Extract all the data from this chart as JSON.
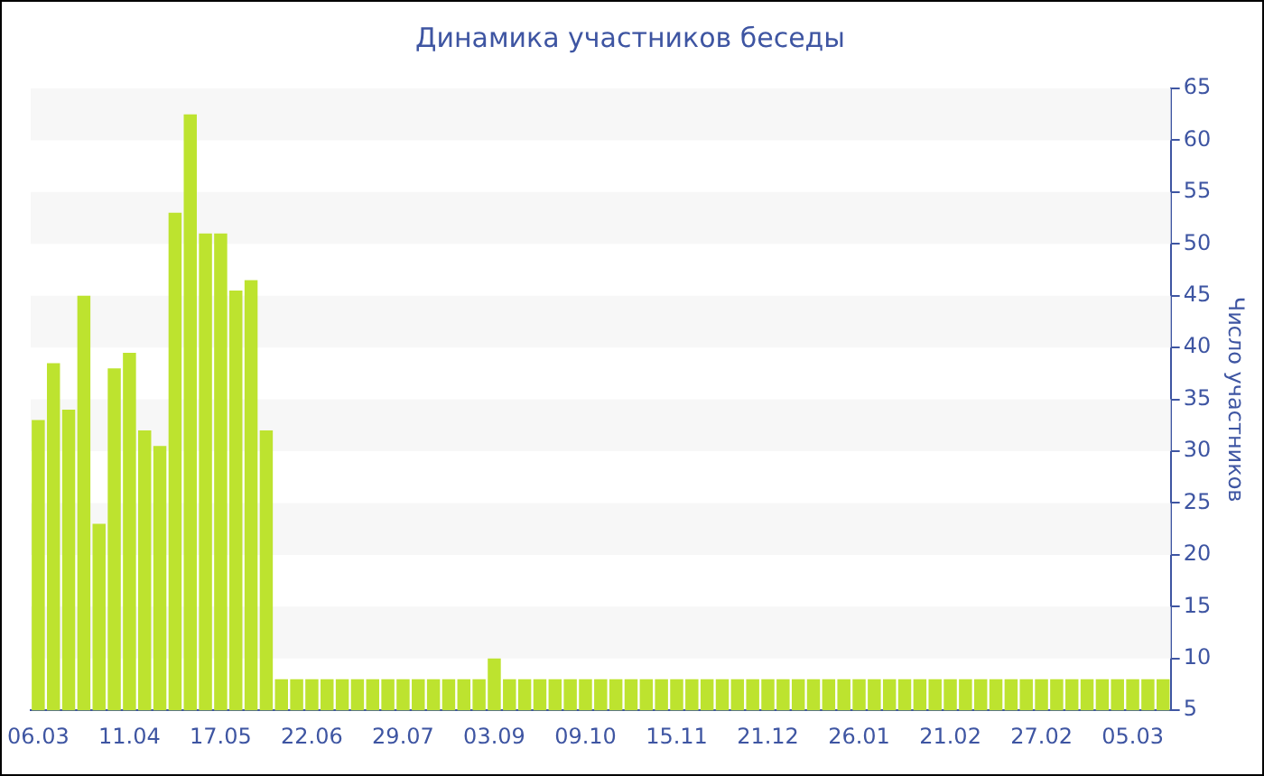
{
  "chart_data": {
    "type": "bar",
    "title": "Динамика участников беседы",
    "ylabel": "Число участников",
    "categories": [
      "06.03",
      null,
      null,
      null,
      null,
      null,
      "11.04",
      null,
      null,
      null,
      null,
      null,
      "17.05",
      null,
      null,
      null,
      null,
      null,
      "22.06",
      null,
      null,
      null,
      null,
      null,
      "29.07",
      null,
      null,
      null,
      null,
      null,
      "03.09",
      null,
      null,
      null,
      null,
      null,
      "09.10",
      null,
      null,
      null,
      null,
      null,
      "15.11",
      null,
      null,
      null,
      null,
      null,
      "21.12",
      null,
      null,
      null,
      null,
      null,
      "26.01",
      null,
      null,
      null,
      null,
      null,
      "21.02",
      null,
      null,
      null,
      null,
      null,
      "27.02",
      null,
      null,
      null,
      null,
      null,
      "05.03",
      null,
      null
    ],
    "values": [
      33,
      38.5,
      34,
      45,
      23,
      38,
      39.5,
      32,
      30.5,
      53,
      62.5,
      51,
      51,
      45.5,
      46.5,
      32,
      8,
      8,
      8,
      8,
      8,
      8,
      8,
      8,
      8,
      8,
      8,
      8,
      8,
      8,
      10,
      8,
      8,
      8,
      8,
      8,
      8,
      8,
      8,
      8,
      8,
      8,
      8,
      8,
      8,
      8,
      8,
      8,
      8,
      8,
      8,
      8,
      8,
      8,
      8,
      8,
      8,
      8,
      8,
      8,
      8,
      8,
      8,
      8,
      8,
      8,
      8,
      8,
      8,
      8,
      8,
      8,
      8,
      8,
      8
    ],
    "color": "#bde32f",
    "ylim": [
      5,
      65
    ],
    "yticks": [
      5,
      10,
      15,
      20,
      25,
      30,
      35,
      40,
      45,
      50,
      55,
      60,
      65
    ],
    "bands": [
      {
        "axis": "y",
        "from": 10,
        "to": 15,
        "color": "#f7f7f7"
      },
      {
        "axis": "y",
        "from": 20,
        "to": 25,
        "color": "#f7f7f7"
      },
      {
        "axis": "y",
        "from": 30,
        "to": 35,
        "color": "#f7f7f7"
      },
      {
        "axis": "y",
        "from": 40,
        "to": 45,
        "color": "#f7f7f7"
      },
      {
        "axis": "y",
        "from": 50,
        "to": 55,
        "color": "#f7f7f7"
      },
      {
        "axis": "y",
        "from": 60,
        "to": 65,
        "color": "#f7f7f7"
      }
    ],
    "grid": false,
    "legend": false
  }
}
